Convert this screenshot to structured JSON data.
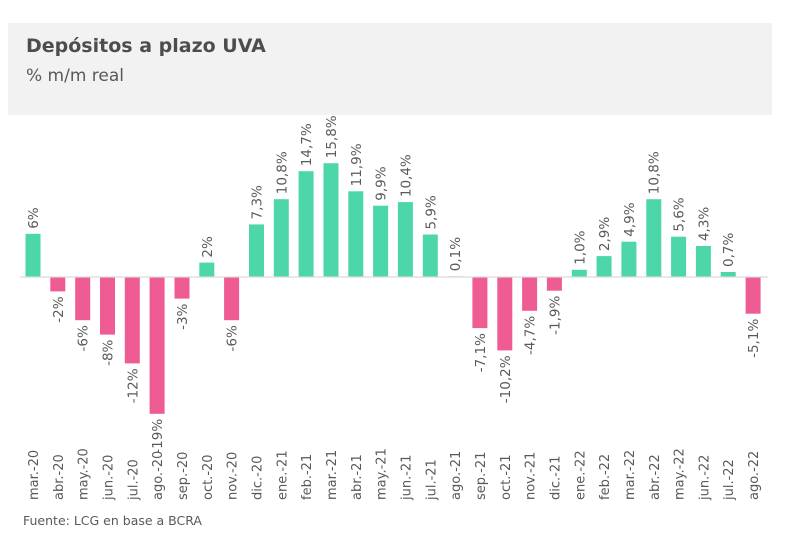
{
  "header": {
    "title": "Depósitos a plazo UVA",
    "subtitle": "% m/m real"
  },
  "source": "Fuente: LCG en base a BCRA",
  "colors": {
    "positive": "#4dd6aa",
    "negative": "#ef5b93",
    "axis": "#d9d9d9",
    "label": "#595959",
    "header_bg": "#f2f2f2"
  },
  "chart_data": {
    "type": "bar",
    "title": "Depósitos a plazo UVA",
    "subtitle": "% m/m real",
    "xlabel": "",
    "ylabel": "% m/m real",
    "ylim": [
      -20,
      16
    ],
    "grid": false,
    "legend": "none",
    "categories": [
      "mar.-20",
      "abr.-20",
      "may.-20",
      "jun.-20",
      "jul.-20",
      "ago.-20",
      "sep.-20",
      "oct.-20",
      "nov.-20",
      "dic.-20",
      "ene.-21",
      "feb.-21",
      "mar.-21",
      "abr.-21",
      "may.-21",
      "jun.-21",
      "jul.-21",
      "ago.-21",
      "sep.-21",
      "oct.-21",
      "nov.-21",
      "dic.-21",
      "ene.-22",
      "feb.-22",
      "mar.-22",
      "abr.-22",
      "may.-22",
      "jun.-22",
      "jul.-22",
      "ago.-22"
    ],
    "values": [
      6,
      -2,
      -6,
      -8,
      -12,
      -19,
      -3,
      2,
      -6,
      7.3,
      10.8,
      14.7,
      15.8,
      11.9,
      9.9,
      10.4,
      5.9,
      0.1,
      -7.1,
      -10.2,
      -4.7,
      -1.9,
      1.0,
      2.9,
      4.9,
      10.8,
      5.6,
      4.3,
      0.7,
      -5.1
    ],
    "labels": [
      "6%",
      "-2%",
      "-6%",
      "-8%",
      "-12%",
      "-19%",
      "-3%",
      "2%",
      "-6%",
      "7,3%",
      "10,8%",
      "14,7%",
      "15,8%",
      "11,9%",
      "9,9%",
      "10,4%",
      "5,9%",
      "0,1%",
      "-7,1%",
      "-10,2%",
      "-4,7%",
      "-1,9%",
      "1,0%",
      "2,9%",
      "4,9%",
      "10,8%",
      "5,6%",
      "4,3%",
      "0,7%",
      "-5,1%"
    ]
  }
}
